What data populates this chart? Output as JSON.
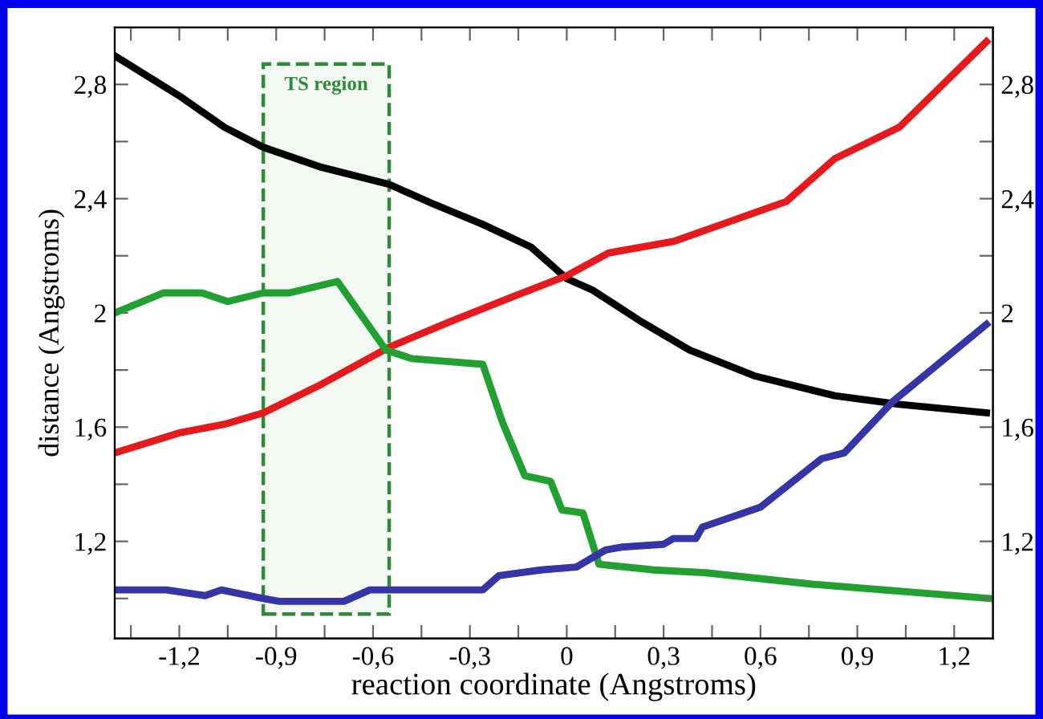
{
  "chart_data": {
    "type": "line",
    "xlabel": "reaction coordinate (Angstroms)",
    "ylabel": "distance (Angstroms)",
    "xlim": [
      -1.4,
      1.32
    ],
    "ylim": [
      0.86,
      3.0
    ],
    "y2lim": [
      0.86,
      3.0
    ],
    "xticks": [
      {
        "value": -1.35,
        "label": null
      },
      {
        "value": -1.2,
        "label": "-1,2"
      },
      {
        "value": -1.05,
        "label": null
      },
      {
        "value": -0.9,
        "label": "-0,9"
      },
      {
        "value": -0.75,
        "label": null
      },
      {
        "value": -0.6,
        "label": "-0,6"
      },
      {
        "value": -0.45,
        "label": null
      },
      {
        "value": -0.3,
        "label": "-0,3"
      },
      {
        "value": -0.15,
        "label": null
      },
      0,
      {
        "value": 0.15,
        "label": null
      },
      {
        "value": 0.3,
        "label": "0,3"
      },
      {
        "value": 0.45,
        "label": null
      },
      {
        "value": 0.6,
        "label": "0,6"
      },
      {
        "value": 0.75,
        "label": null
      },
      {
        "value": 0.9,
        "label": "0,9"
      },
      {
        "value": 1.05,
        "label": null
      },
      {
        "value": 1.2,
        "label": "1,2"
      }
    ],
    "yticks": [
      {
        "value": 1.0,
        "label": null
      },
      {
        "value": 1.2,
        "label": "1,2"
      },
      {
        "value": 1.4,
        "label": null
      },
      {
        "value": 1.6,
        "label": "1,6"
      },
      {
        "value": 1.8,
        "label": null
      },
      2,
      {
        "value": 2.2,
        "label": null
      },
      {
        "value": 2.4,
        "label": "2,4"
      },
      {
        "value": 2.6,
        "label": null
      },
      {
        "value": 2.8,
        "label": "2,8"
      }
    ],
    "y2ticks": [
      {
        "value": 1.0,
        "label": null
      },
      {
        "value": 1.2,
        "label": "1,2"
      },
      {
        "value": 1.4,
        "label": null
      },
      {
        "value": 1.6,
        "label": "1,6"
      },
      {
        "value": 1.8,
        "label": null
      },
      2,
      {
        "value": 2.2,
        "label": null
      },
      {
        "value": 2.4,
        "label": "2,4"
      },
      {
        "value": 2.6,
        "label": null
      },
      {
        "value": 2.8,
        "label": "2,8"
      }
    ],
    "grid": false,
    "legend": false,
    "marker": "none",
    "line_style": "solid",
    "bands": [
      {
        "axis": "x",
        "from": -0.94,
        "to": -0.55,
        "label": "TS region",
        "color": "#2e8b3a"
      }
    ],
    "series": [
      {
        "color": "#000000",
        "x": [
          -1.4,
          -1.2,
          -1.06,
          -0.94,
          -0.76,
          -0.55,
          -0.41,
          -0.26,
          -0.11,
          0,
          0.08,
          0.23,
          0.38,
          0.58,
          0.83,
          1.03,
          1.3
        ],
        "values": [
          2.9,
          2.76,
          2.65,
          2.58,
          2.51,
          2.45,
          2.38,
          2.31,
          2.23,
          2.12,
          2.08,
          1.97,
          1.87,
          1.78,
          1.71,
          1.68,
          1.65
        ]
      },
      {
        "color": "#e41a1c",
        "x": [
          -1.4,
          -1.2,
          -1.06,
          -0.94,
          -0.76,
          -0.55,
          -0.36,
          -0.16,
          0,
          0.13,
          0.33,
          0.48,
          0.68,
          0.83,
          1.03,
          1.3
        ],
        "values": [
          1.51,
          1.58,
          1.61,
          1.65,
          1.75,
          1.88,
          1.97,
          2.06,
          2.13,
          2.21,
          2.25,
          2.31,
          2.39,
          2.54,
          2.65,
          2.95
        ]
      },
      {
        "color": "#22a032",
        "x": [
          -1.4,
          -1.25,
          -1.13,
          -1.05,
          -0.94,
          -0.86,
          -0.71,
          -0.56,
          -0.48,
          -0.26,
          -0.2,
          -0.13,
          -0.05,
          -0.015,
          0.05,
          0.1,
          0.27,
          0.43,
          0.76,
          1.31
        ],
        "values": [
          2.0,
          2.07,
          2.07,
          2.04,
          2.07,
          2.07,
          2.11,
          1.87,
          1.84,
          1.82,
          1.62,
          1.43,
          1.41,
          1.31,
          1.3,
          1.12,
          1.1,
          1.09,
          1.05,
          1.0
        ]
      },
      {
        "color": "#3535a8",
        "x": [
          -1.39,
          -1.24,
          -1.12,
          -1.07,
          -0.94,
          -0.89,
          -0.69,
          -0.61,
          -0.26,
          -0.21,
          -0.08,
          0.03,
          0.12,
          0.17,
          0.3,
          0.33,
          0.4,
          0.42,
          0.6,
          0.79,
          0.86,
          1.01,
          1.3
        ],
        "values": [
          1.03,
          1.03,
          1.01,
          1.03,
          1.0,
          0.99,
          0.99,
          1.03,
          1.03,
          1.08,
          1.1,
          1.11,
          1.17,
          1.18,
          1.19,
          1.21,
          1.21,
          1.25,
          1.32,
          1.49,
          1.51,
          1.69,
          1.96
        ]
      }
    ]
  }
}
